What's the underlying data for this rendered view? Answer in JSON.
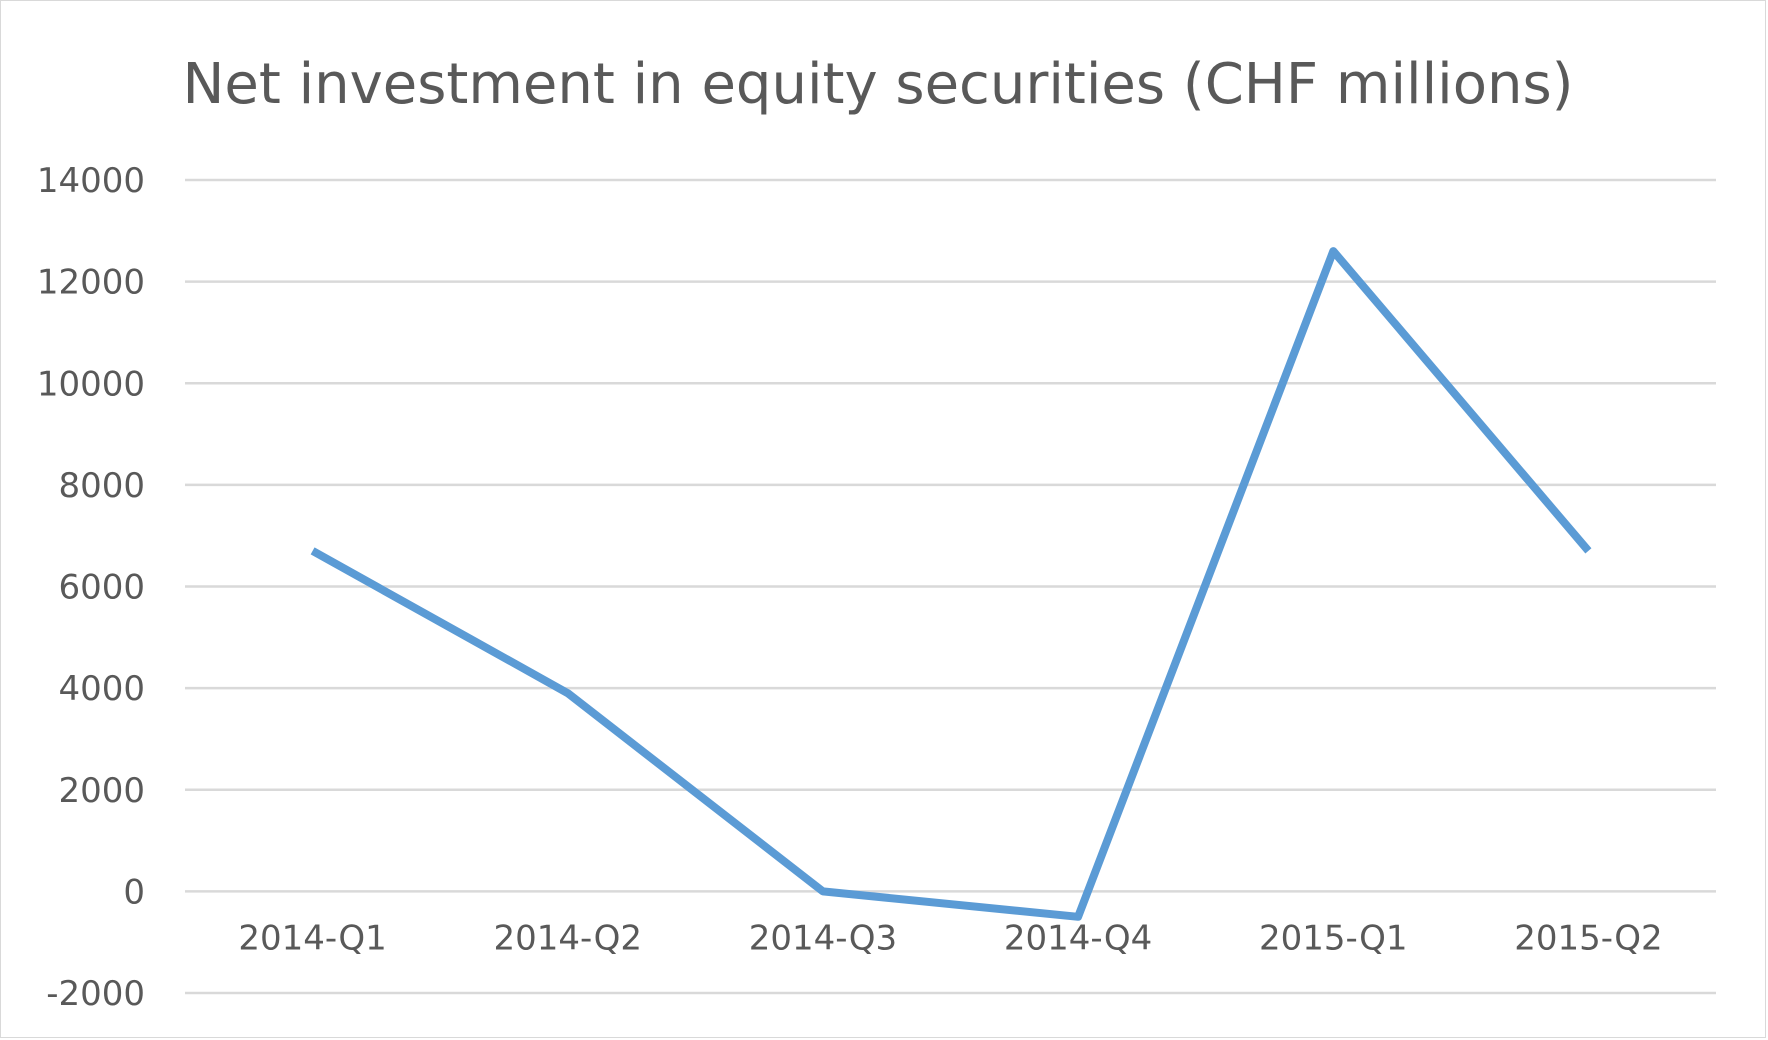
{
  "chart_data": {
    "type": "line",
    "title": "Net investment in equity securities (CHF millions)",
    "xlabel": "",
    "ylabel": "",
    "categories": [
      "2014-Q1",
      "2014-Q2",
      "2014-Q3",
      "2014-Q4",
      "2015-Q1",
      "2015-Q2"
    ],
    "series": [
      {
        "values": [
          6700,
          3900,
          0,
          -500,
          12600,
          6700
        ]
      }
    ],
    "ylim": [
      -2000,
      14000
    ],
    "yticks": [
      -2000,
      0,
      2000,
      4000,
      6000,
      8000,
      10000,
      12000,
      14000
    ],
    "grid": true,
    "legend": "none",
    "colors": {
      "series": "#5b9bd5",
      "grid": "#d9d9d9",
      "text": "#595959"
    }
  }
}
